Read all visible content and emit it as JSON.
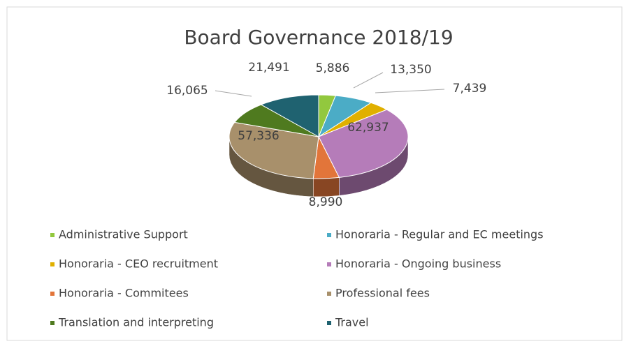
{
  "chart_data": {
    "type": "pie",
    "title": "Board Governance 2018/19",
    "categories": [
      "Administrative Support",
      "Honoraria - Regular and EC meetings",
      "Honoraria - CEO recruitment",
      "Honoraria - Ongoing business",
      "Honoraria - Commitees",
      "Professional fees",
      "Translation and interpreting",
      "Travel"
    ],
    "values": [
      5886,
      13350,
      7439,
      62937,
      8990,
      57336,
      16065,
      21491
    ],
    "value_labels": [
      "5,886",
      "13,350",
      "7,439",
      "62,937",
      "8,990",
      "57,336",
      "16,065",
      "21,491"
    ],
    "colors": [
      "#92c83e",
      "#4bacc6",
      "#e0b000",
      "#b57cb9",
      "#e2753a",
      "#a8906b",
      "#4f7a1f",
      "#1f6270"
    ],
    "legend": "bottom"
  }
}
